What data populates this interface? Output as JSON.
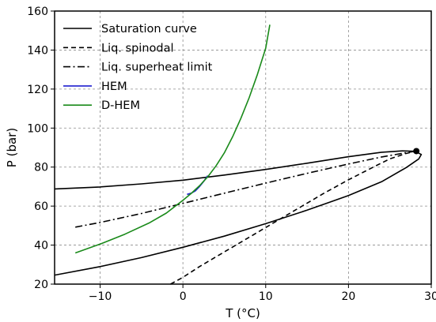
{
  "chart_data": {
    "type": "line",
    "xlabel": "T (°C)",
    "ylabel": "P (bar)",
    "xlim": [
      -15.5,
      30
    ],
    "ylim": [
      20,
      160
    ],
    "xticks": [
      -10,
      0,
      10,
      20,
      30
    ],
    "yticks": [
      20,
      40,
      60,
      80,
      100,
      120,
      140,
      160
    ],
    "xtick_labels": [
      "−10",
      "0",
      "10",
      "20",
      "30"
    ],
    "ytick_labels": [
      "20",
      "40",
      "60",
      "80",
      "100",
      "120",
      "140",
      "160"
    ],
    "grid": true,
    "legend_position": "top-left",
    "series": [
      {
        "name": "Saturation curve",
        "style": "solid",
        "color": "#000000",
        "x": [
          -15.5,
          -10,
          -5,
          0,
          5,
          10,
          15,
          20,
          24,
          26.5,
          28,
          28.8,
          28.5,
          27,
          24,
          20,
          15,
          10,
          5,
          0,
          -5,
          -10,
          -15.5
        ],
        "y": [
          68.8,
          69.8,
          71.4,
          73.3,
          75.9,
          78.8,
          82.0,
          85.3,
          87.6,
          88.3,
          88.1,
          86.5,
          84.2,
          79.8,
          72.5,
          65.4,
          57.9,
          51.0,
          44.6,
          38.9,
          33.6,
          29.0,
          24.6
        ]
      },
      {
        "name": "Liq. spinodal",
        "style": "dashed",
        "color": "#000000",
        "x": [
          -1.5,
          0,
          2,
          5,
          8,
          11,
          14,
          17,
          20,
          23,
          25,
          27,
          28.2
        ],
        "y": [
          20.0,
          23.5,
          29.0,
          36.5,
          44.0,
          51.5,
          59.0,
          66.5,
          73.5,
          80.0,
          84.2,
          87.0,
          88.2
        ],
        "point": {
          "x": 28.2,
          "y": 88.2
        }
      },
      {
        "name": "Liq. superheat limit",
        "style": "dashdot",
        "color": "#000000",
        "x": [
          -13,
          -10,
          -5,
          0,
          5,
          10,
          15,
          20,
          24,
          27,
          28.2
        ],
        "y": [
          49.2,
          51.6,
          56.2,
          61.4,
          66.6,
          71.8,
          76.8,
          81.6,
          85.2,
          87.4,
          88.2
        ]
      },
      {
        "name": "HEM",
        "style": "solid",
        "color": "#1f1fcf",
        "x": [
          0.5,
          1,
          1.5,
          2,
          2.5,
          3
        ],
        "y": [
          66.0,
          66.6,
          67.8,
          70.0,
          72.6,
          75.6
        ]
      },
      {
        "name": "D-HEM",
        "style": "solid",
        "color": "#1a8a1a",
        "x": [
          -13,
          -10,
          -7,
          -4,
          -2,
          0,
          1,
          2,
          3,
          4,
          5,
          6,
          7,
          8,
          9,
          10,
          10.5
        ],
        "y": [
          36.0,
          40.5,
          45.6,
          51.5,
          56.4,
          63.0,
          66.5,
          70.4,
          75.0,
          80.6,
          87.3,
          95.5,
          105.0,
          115.5,
          127.5,
          141.0,
          153.0
        ]
      }
    ]
  }
}
